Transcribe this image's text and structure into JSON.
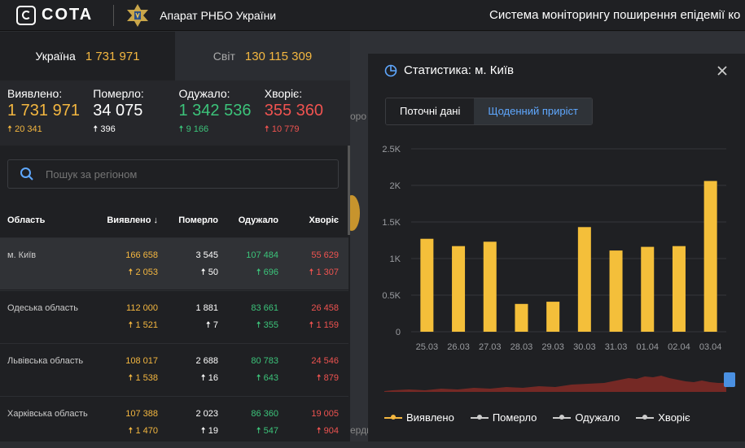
{
  "header": {
    "logo_text": "COTA",
    "org": "Апарат РНБО України",
    "system_title": "Система моніторингу поширення епідемії ко"
  },
  "tabs": [
    {
      "label": "Україна",
      "value": "1 731 971"
    },
    {
      "label": "Світ",
      "value": "130 115 309"
    }
  ],
  "summary": {
    "detected": {
      "label": "Виявлено:",
      "value": "1 731 971",
      "delta": "20 341"
    },
    "died": {
      "label": "Померло:",
      "value": "34 075",
      "delta": "396"
    },
    "recovered": {
      "label": "Одужало:",
      "value": "1 342 536",
      "delta": "9 166"
    },
    "sick": {
      "label": "Хворіє:",
      "value": "355 360",
      "delta": "10 779"
    }
  },
  "search": {
    "placeholder": "Пошук за регіоном"
  },
  "table": {
    "headers": {
      "region": "Область",
      "detected": "Виявлено",
      "died": "Померло",
      "recovered": "Одужало",
      "sick": "Хворіє"
    },
    "rows": [
      {
        "name": "м. Київ",
        "detected": "166 658",
        "detected_d": "2 053",
        "died": "3 545",
        "died_d": "50",
        "recovered": "107 484",
        "recovered_d": "696",
        "sick": "55 629",
        "sick_d": "1 307"
      },
      {
        "name": "Одеська область",
        "detected": "112 000",
        "detected_d": "1 521",
        "died": "1 881",
        "died_d": "7",
        "recovered": "83 661",
        "recovered_d": "355",
        "sick": "26 458",
        "sick_d": "1 159"
      },
      {
        "name": "Львівська область",
        "detected": "108 017",
        "detected_d": "1 538",
        "died": "2 688",
        "died_d": "16",
        "recovered": "80 783",
        "recovered_d": "643",
        "sick": "24 546",
        "sick_d": "879"
      },
      {
        "name": "Харківська область",
        "detected": "107 388",
        "detected_d": "1 470",
        "died": "2 023",
        "died_d": "19",
        "recovered": "86 360",
        "recovered_d": "547",
        "sick": "19 005",
        "sick_d": "904"
      }
    ]
  },
  "map": {
    "label_1": "оро",
    "label_2": "ерди"
  },
  "panel": {
    "title": "Статистика: м. Київ",
    "segments": {
      "current": "Поточні дані",
      "daily": "Щоденний приріст"
    },
    "legend": [
      "Виявлено",
      "Померло",
      "Одужало",
      "Хворіє"
    ]
  },
  "colors": {
    "accent": "#f4b740",
    "green": "#3cc37a",
    "red": "#ef5350",
    "blue": "#5fa8ff"
  },
  "chart_data": {
    "type": "bar",
    "title": "Статистика: м. Київ",
    "categories": [
      "25.03",
      "26.03",
      "27.03",
      "28.03",
      "29.03",
      "30.03",
      "31.03",
      "01.04",
      "02.04",
      "03.04"
    ],
    "series": [
      {
        "name": "Виявлено",
        "values": [
          1270,
          1170,
          1230,
          380,
          410,
          1430,
          1110,
          1160,
          1170,
          2060
        ]
      }
    ],
    "yticks": [
      "0",
      "0.5K",
      "1K",
      "1.5K",
      "2K",
      "2.5K"
    ],
    "ylim": [
      0,
      2500
    ],
    "xlabel": "",
    "ylabel": ""
  }
}
